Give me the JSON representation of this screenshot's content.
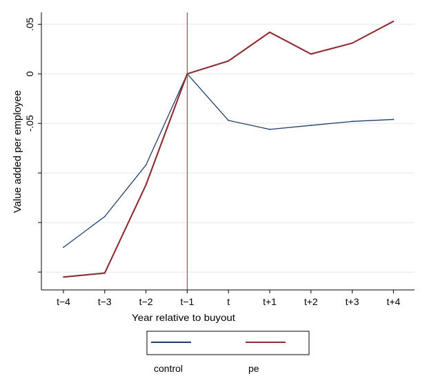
{
  "chart_data": {
    "type": "line",
    "xlabel": "Year relative to buyout",
    "ylabel": "Value added per employee",
    "categories": [
      "t−4",
      "t−3",
      "t−2",
      "t−1",
      "t",
      "t+1",
      "t+2",
      "t+3",
      "t+4"
    ],
    "y_ticks": [
      {
        "value": 0.05,
        "label": ".05"
      },
      {
        "value": 0,
        "label": "0"
      },
      {
        "value": -0.05,
        "label": "-.05"
      },
      {
        "value": -0.1,
        "label": ""
      },
      {
        "value": -0.15,
        "label": ""
      },
      {
        "value": -0.2,
        "label": ""
      }
    ],
    "ylim": [
      -0.218,
      0.062
    ],
    "reference_line": {
      "category": "t−1",
      "color": "#a0262f"
    },
    "grid": true,
    "legend_position": "bottom",
    "series": [
      {
        "name": "control",
        "color": "#1b3d6b",
        "values": [
          -0.175,
          -0.144,
          -0.092,
          0.0,
          -0.047,
          -0.056,
          -0.052,
          -0.048,
          -0.046
        ]
      },
      {
        "name": "pe",
        "color": "#8e2a30",
        "values": [
          -0.205,
          -0.201,
          -0.112,
          0.0,
          0.013,
          0.042,
          0.02,
          0.031,
          0.053
        ]
      }
    ]
  }
}
